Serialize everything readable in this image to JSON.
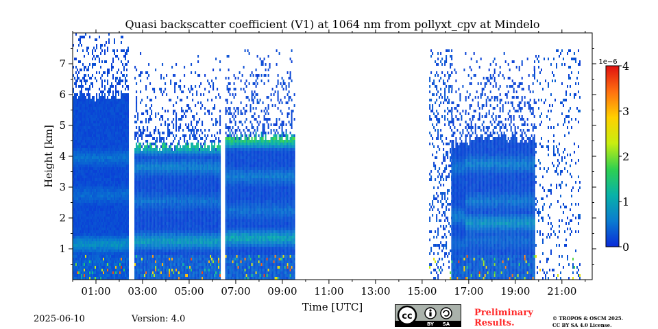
{
  "chart_data": {
    "type": "heatmap",
    "title": "Quasi backscatter coefficient (V1) at 1064 nm from pollyxt_cpv at Mindelo",
    "xlabel": "Time [UTC]",
    "ylabel": "Height [km]",
    "x_tick_labels": [
      "01:00",
      "03:00",
      "05:00",
      "07:00",
      "09:00",
      "11:00",
      "13:00",
      "15:00",
      "17:00",
      "19:00",
      "21:00"
    ],
    "x_tick_values": [
      1,
      3,
      5,
      7,
      9,
      11,
      13,
      15,
      17,
      19,
      21
    ],
    "xlim": [
      0,
      22.3
    ],
    "y_tick_labels": [
      "1",
      "2",
      "3",
      "4",
      "5",
      "6",
      "7"
    ],
    "y_tick_values": [
      1,
      2,
      3,
      4,
      5,
      6,
      7
    ],
    "ylim": [
      0,
      8
    ],
    "colorbar": {
      "ticks": [
        "0",
        "1",
        "2",
        "3",
        "4"
      ],
      "tick_values": [
        0,
        1,
        2,
        3,
        4
      ],
      "range": [
        0,
        4
      ],
      "scale_label": "1e−6",
      "colormap": [
        "#0a2bd8",
        "#0a7cd0",
        "#08b2a8",
        "#2fd050",
        "#c8ee10",
        "#ffd000",
        "#ff7010",
        "#e01010"
      ]
    },
    "data_segments": [
      {
        "start": 0.0,
        "end": 2.4,
        "top": 5.9,
        "bands": [
          {
            "h": 1.1,
            "level": 0.6
          },
          {
            "h": 2.7,
            "level": 0.25
          },
          {
            "h": 3.9,
            "level": 0.3
          }
        ]
      },
      {
        "start": 2.65,
        "end": 6.35,
        "top": 4.3,
        "bands": [
          {
            "h": 1.2,
            "level": 0.7
          },
          {
            "h": 2.5,
            "level": 0.25
          },
          {
            "h": 3.6,
            "level": 0.4
          },
          {
            "h": 4.3,
            "level": 1.3
          }
        ]
      },
      {
        "start": 6.55,
        "end": 9.55,
        "top": 4.6,
        "bands": [
          {
            "h": 1.3,
            "level": 0.8
          },
          {
            "h": 2.2,
            "level": 0.25
          },
          {
            "h": 3.3,
            "level": 0.35
          },
          {
            "h": 4.5,
            "level": 1.5
          }
        ]
      },
      {
        "start": 16.25,
        "end": 16.85,
        "top": 4.4,
        "bands": [
          {
            "h": 1.1,
            "level": 0.2
          },
          {
            "h": 2.0,
            "level": 0.4
          },
          {
            "h": 3.6,
            "level": 0.3
          }
        ]
      },
      {
        "start": 16.85,
        "end": 19.8,
        "top": 4.5,
        "bands": [
          {
            "h": 1.2,
            "level": 0.2
          },
          {
            "h": 1.8,
            "level": 0.6
          },
          {
            "h": 2.5,
            "level": 0.3
          },
          {
            "h": 3.7,
            "level": 0.4
          }
        ]
      }
    ],
    "sparse_segments": [
      {
        "start": 15.3,
        "end": 16.25,
        "top": 7.4,
        "density": 0.25
      },
      {
        "start": 19.8,
        "end": 21.8,
        "top": 7.4,
        "density": 0.12
      }
    ]
  },
  "footer": {
    "date": "2025-06-10",
    "version": "Version: 4.0",
    "cc_text": "cc",
    "cc_by": "BY",
    "cc_sa": "SA",
    "preliminary_line1": "Preliminary",
    "preliminary_line2": "Results.",
    "license_line1": "© TROPOS & OSCM 2025.",
    "license_line2": "CC BY SA 4.0 License."
  },
  "colors": {
    "preliminary": "#ff2a2a",
    "badge_bg": "#aab2ab"
  }
}
